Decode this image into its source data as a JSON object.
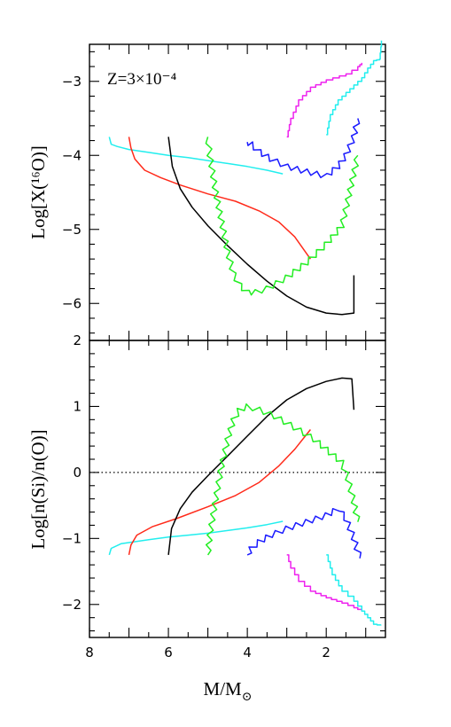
{
  "figure": {
    "xlabel_main": "M/M",
    "xlabel_sub": "⊙",
    "annotation": "Z=3×10⁻⁴"
  },
  "colors": {
    "black": "#000000",
    "red": "#ff2a1a",
    "green": "#22ee22",
    "blue": "#1a1aff",
    "cyan": "#22eeee",
    "magenta": "#ee22ee"
  },
  "chart_data": [
    {
      "type": "line",
      "ylabel": "Log[X(¹⁶O)]",
      "xlim": [
        8,
        0.5
      ],
      "ylim": [
        -6.5,
        -2.5
      ],
      "xticks": [
        8,
        6,
        4,
        2
      ],
      "yticks": [
        -6,
        -5,
        -4,
        -3
      ],
      "grid": false,
      "series": [
        {
          "color": "cyan",
          "style": "smooth",
          "points": [
            [
              7.5,
              -3.75
            ],
            [
              7.45,
              -3.85
            ],
            [
              7.3,
              -3.88
            ],
            [
              7.0,
              -3.92
            ],
            [
              6.5,
              -3.96
            ],
            [
              6.0,
              -4.0
            ],
            [
              5.5,
              -4.03
            ],
            [
              5.0,
              -4.07
            ],
            [
              4.5,
              -4.11
            ],
            [
              4.0,
              -4.15
            ],
            [
              3.5,
              -4.2
            ],
            [
              3.1,
              -4.25
            ]
          ]
        },
        {
          "color": "red",
          "style": "smooth",
          "points": [
            [
              7.0,
              -3.75
            ],
            [
              6.95,
              -3.9
            ],
            [
              6.85,
              -4.05
            ],
            [
              6.6,
              -4.2
            ],
            [
              6.2,
              -4.3
            ],
            [
              5.7,
              -4.4
            ],
            [
              5.0,
              -4.52
            ],
            [
              4.3,
              -4.62
            ],
            [
              3.7,
              -4.75
            ],
            [
              3.2,
              -4.9
            ],
            [
              2.8,
              -5.1
            ],
            [
              2.4,
              -5.4
            ]
          ]
        },
        {
          "color": "black",
          "style": "smooth",
          "points": [
            [
              6.0,
              -3.75
            ],
            [
              5.9,
              -4.15
            ],
            [
              5.7,
              -4.45
            ],
            [
              5.4,
              -4.7
            ],
            [
              5.0,
              -4.95
            ],
            [
              4.5,
              -5.22
            ],
            [
              4.0,
              -5.47
            ],
            [
              3.5,
              -5.7
            ],
            [
              3.0,
              -5.9
            ],
            [
              2.5,
              -6.05
            ],
            [
              2.0,
              -6.13
            ],
            [
              1.6,
              -6.15
            ],
            [
              1.3,
              -6.13
            ],
            [
              1.3,
              -5.62
            ]
          ]
        },
        {
          "color": "green",
          "style": "zigzag",
          "points": [
            [
              5.0,
              -3.75
            ],
            [
              4.95,
              -4.0
            ],
            [
              4.8,
              -4.5
            ],
            [
              4.65,
              -4.9
            ],
            [
              4.5,
              -5.3
            ],
            [
              4.35,
              -5.6
            ],
            [
              4.2,
              -5.75
            ],
            [
              4.0,
              -5.85
            ],
            [
              3.8,
              -5.85
            ],
            [
              3.5,
              -5.8
            ],
            [
              3.0,
              -5.65
            ],
            [
              2.5,
              -5.45
            ],
            [
              2.0,
              -5.2
            ],
            [
              1.6,
              -4.95
            ],
            [
              1.45,
              -4.6
            ],
            [
              1.2,
              -4.0
            ]
          ]
        },
        {
          "color": "blue",
          "style": "zigzag",
          "points": [
            [
              4.0,
              -3.82
            ],
            [
              3.9,
              -3.85
            ],
            [
              3.7,
              -3.95
            ],
            [
              3.4,
              -4.05
            ],
            [
              3.0,
              -4.15
            ],
            [
              2.5,
              -4.22
            ],
            [
              2.0,
              -4.28
            ],
            [
              1.7,
              -4.15
            ],
            [
              1.5,
              -4.0
            ],
            [
              1.3,
              -3.75
            ],
            [
              1.2,
              -3.5
            ]
          ]
        },
        {
          "color": "magenta",
          "style": "staircase",
          "points": [
            [
              3.0,
              -3.75
            ],
            [
              2.9,
              -3.5
            ],
            [
              2.7,
              -3.25
            ],
            [
              2.4,
              -3.08
            ],
            [
              2.0,
              -2.98
            ],
            [
              1.5,
              -2.9
            ],
            [
              1.2,
              -2.8
            ],
            [
              1.1,
              -2.75
            ]
          ]
        },
        {
          "color": "cyan",
          "style": "staircase",
          "points": [
            [
              2.0,
              -3.72
            ],
            [
              1.9,
              -3.45
            ],
            [
              1.7,
              -3.25
            ],
            [
              1.4,
              -3.1
            ],
            [
              1.1,
              -2.95
            ],
            [
              0.95,
              -2.82
            ],
            [
              0.8,
              -2.72
            ],
            [
              0.65,
              -2.7
            ],
            [
              0.6,
              -2.45
            ]
          ]
        }
      ]
    },
    {
      "type": "line",
      "ylabel": "Log[n(Si)/n(O)]",
      "xlim": [
        8,
        0.5
      ],
      "ylim": [
        -2.5,
        2
      ],
      "xticks": [
        8,
        6,
        4,
        2
      ],
      "yticks": [
        -2,
        -1,
        0,
        1,
        2
      ],
      "grid": false,
      "reference_line": {
        "y": 0,
        "style": "dotted"
      },
      "series": [
        {
          "color": "cyan",
          "style": "smooth",
          "points": [
            [
              7.5,
              -1.25
            ],
            [
              7.45,
              -1.15
            ],
            [
              7.2,
              -1.08
            ],
            [
              6.5,
              -1.02
            ],
            [
              6.0,
              -0.98
            ],
            [
              5.5,
              -0.95
            ],
            [
              5.0,
              -0.92
            ],
            [
              4.5,
              -0.88
            ],
            [
              4.0,
              -0.84
            ],
            [
              3.5,
              -0.79
            ],
            [
              3.1,
              -0.74
            ]
          ]
        },
        {
          "color": "red",
          "style": "smooth",
          "points": [
            [
              7.0,
              -1.25
            ],
            [
              6.95,
              -1.1
            ],
            [
              6.8,
              -0.95
            ],
            [
              6.4,
              -0.82
            ],
            [
              5.8,
              -0.7
            ],
            [
              5.0,
              -0.52
            ],
            [
              4.3,
              -0.35
            ],
            [
              3.7,
              -0.15
            ],
            [
              3.2,
              0.1
            ],
            [
              2.8,
              0.35
            ],
            [
              2.4,
              0.65
            ]
          ]
        },
        {
          "color": "black",
          "style": "smooth",
          "points": [
            [
              6.0,
              -1.25
            ],
            [
              5.92,
              -0.85
            ],
            [
              5.7,
              -0.55
            ],
            [
              5.4,
              -0.3
            ],
            [
              5.0,
              -0.05
            ],
            [
              4.5,
              0.25
            ],
            [
              4.0,
              0.55
            ],
            [
              3.5,
              0.85
            ],
            [
              3.0,
              1.1
            ],
            [
              2.5,
              1.27
            ],
            [
              2.0,
              1.38
            ],
            [
              1.6,
              1.43
            ],
            [
              1.35,
              1.42
            ],
            [
              1.3,
              0.95
            ]
          ]
        },
        {
          "color": "green",
          "style": "zigzag",
          "points": [
            [
              5.0,
              -1.25
            ],
            [
              4.95,
              -0.95
            ],
            [
              4.8,
              -0.4
            ],
            [
              4.65,
              0.1
            ],
            [
              4.5,
              0.5
            ],
            [
              4.35,
              0.8
            ],
            [
              4.2,
              0.95
            ],
            [
              4.0,
              1.0
            ],
            [
              3.7,
              0.95
            ],
            [
              3.3,
              0.85
            ],
            [
              2.8,
              0.68
            ],
            [
              2.3,
              0.5
            ],
            [
              1.9,
              0.3
            ],
            [
              1.6,
              0.15
            ],
            [
              1.45,
              -0.1
            ],
            [
              1.3,
              -0.45
            ],
            [
              1.2,
              -0.75
            ]
          ]
        },
        {
          "color": "blue",
          "style": "zigzag",
          "points": [
            [
              4.0,
              -1.25
            ],
            [
              3.9,
              -1.15
            ],
            [
              3.7,
              -1.05
            ],
            [
              3.4,
              -0.95
            ],
            [
              3.0,
              -0.85
            ],
            [
              2.5,
              -0.75
            ],
            [
              2.0,
              -0.65
            ],
            [
              1.7,
              -0.55
            ],
            [
              1.5,
              -0.7
            ],
            [
              1.3,
              -1.0
            ],
            [
              1.15,
              -1.3
            ]
          ]
        },
        {
          "color": "magenta",
          "style": "staircase",
          "points": [
            [
              3.0,
              -1.25
            ],
            [
              2.9,
              -1.45
            ],
            [
              2.7,
              -1.65
            ],
            [
              2.4,
              -1.8
            ],
            [
              2.0,
              -1.9
            ],
            [
              1.6,
              -1.98
            ],
            [
              1.3,
              -2.05
            ],
            [
              1.1,
              -2.1
            ]
          ]
        },
        {
          "color": "cyan",
          "style": "staircase",
          "points": [
            [
              2.0,
              -1.25
            ],
            [
              1.85,
              -1.55
            ],
            [
              1.6,
              -1.8
            ],
            [
              1.3,
              -1.95
            ],
            [
              1.1,
              -2.1
            ],
            [
              0.95,
              -2.2
            ],
            [
              0.8,
              -2.3
            ],
            [
              0.62,
              -2.32
            ]
          ]
        }
      ]
    }
  ]
}
